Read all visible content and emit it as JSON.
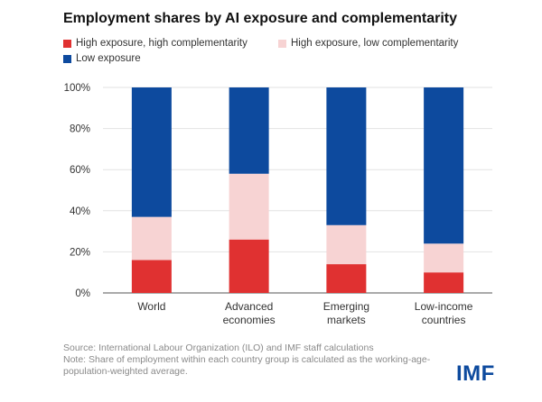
{
  "header": {
    "title": "Employment shares by AI exposure and complementarity"
  },
  "legend": [
    {
      "label": "High exposure, high complementarity",
      "color": "#e03131"
    },
    {
      "label": "High exposure, low complementarity",
      "color": "#f7d3d3"
    },
    {
      "label": "Low exposure",
      "color": "#0d4a9e"
    }
  ],
  "chart_data": {
    "type": "bar",
    "stacked": true,
    "categories": [
      [
        "World"
      ],
      [
        "Advanced",
        "economies"
      ],
      [
        "Emerging",
        "markets"
      ],
      [
        "Low-income",
        "countries"
      ]
    ],
    "series": [
      {
        "name": "High exposure, high complementarity",
        "color": "#e03131",
        "values": [
          16,
          26,
          14,
          10
        ]
      },
      {
        "name": "High exposure, low complementarity",
        "color": "#f7d3d3",
        "values": [
          21,
          32,
          19,
          14
        ]
      },
      {
        "name": "Low exposure",
        "color": "#0d4a9e",
        "values": [
          63,
          42,
          67,
          76
        ]
      }
    ],
    "ylim": [
      0,
      100
    ],
    "yticks": [
      0,
      20,
      40,
      60,
      80,
      100
    ],
    "ytick_labels": [
      "0%",
      "20%",
      "40%",
      "60%",
      "80%",
      "100%"
    ],
    "grid": true,
    "legend_position": "top"
  },
  "footer": {
    "source": "Source: International Labour Organization (ILO) and IMF staff calculations",
    "note": "Note: Share of employment within each country group is calculated as the working-age-population-weighted average."
  },
  "brand": {
    "logo_text": "IMF"
  }
}
